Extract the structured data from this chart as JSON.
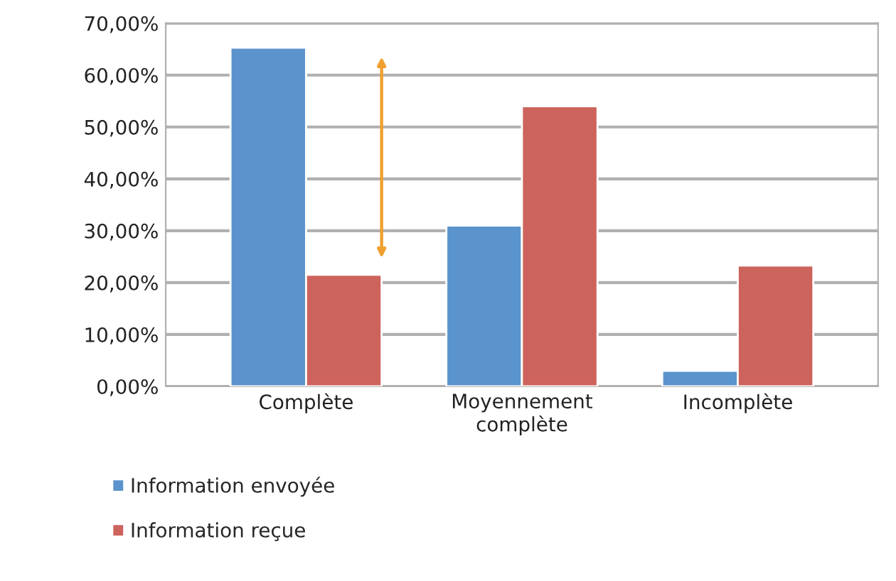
{
  "chart_data": {
    "type": "bar",
    "categories": [
      "Complète",
      "Moyennement\ncomplète",
      "Incomplète"
    ],
    "series": [
      {
        "name": "Information envoyée",
        "color": "#5b93cc",
        "values": [
          65.3,
          31.0,
          3.0
        ]
      },
      {
        "name": "Information reçue",
        "color": "#cc635c",
        "values": [
          21.5,
          54.0,
          23.3
        ]
      }
    ],
    "ylim": [
      0,
      70
    ],
    "yticks": [
      {
        "value": 0,
        "label": "0,00%"
      },
      {
        "value": 10,
        "label": "10,00%"
      },
      {
        "value": 20,
        "label": "20,00%"
      },
      {
        "value": 30,
        "label": "30,00%"
      },
      {
        "value": 40,
        "label": "40,00%"
      },
      {
        "value": 50,
        "label": "50,00%"
      },
      {
        "value": 60,
        "label": "60,00%"
      },
      {
        "value": 70,
        "label": "70,00%"
      }
    ],
    "grid": "y",
    "legend": "bottom left"
  }
}
